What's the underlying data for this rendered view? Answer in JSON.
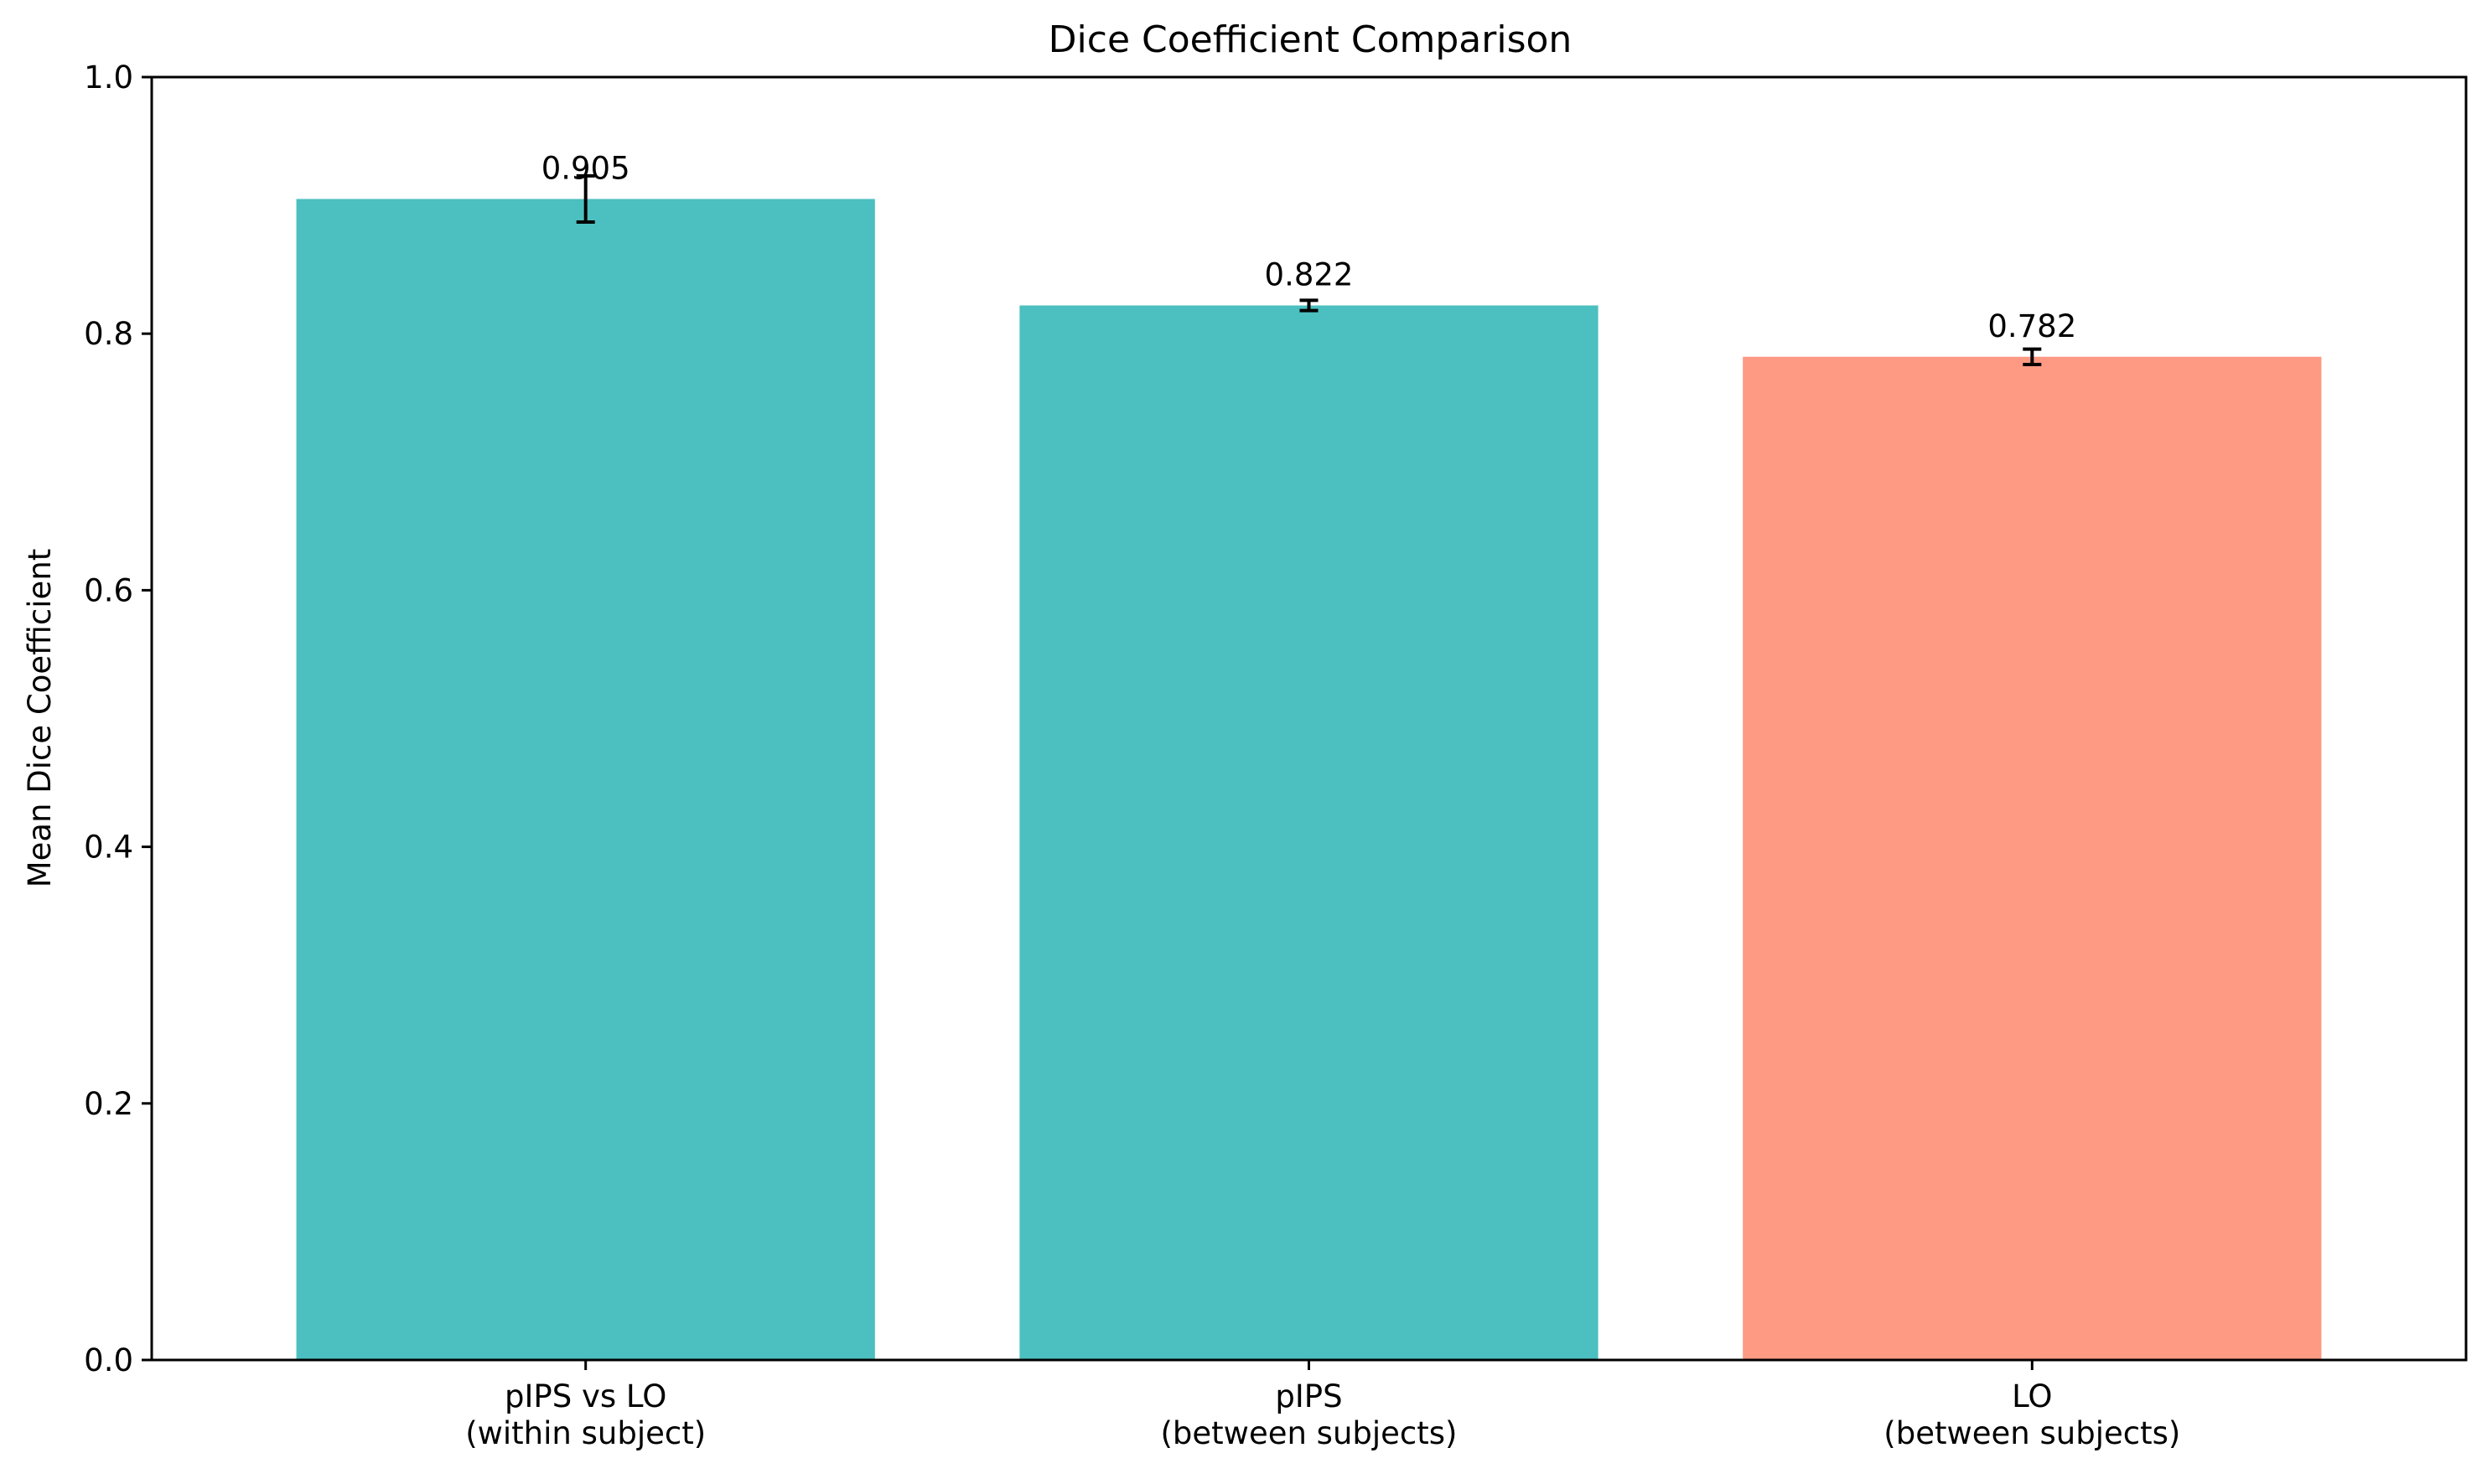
{
  "chart_data": {
    "type": "bar",
    "title": "Dice Coefficient Comparison",
    "xlabel": "",
    "ylabel": "Mean Dice Coefficient",
    "ylim": [
      0,
      1.0
    ],
    "yticks": [
      "0.0",
      "0.2",
      "0.4",
      "0.6",
      "0.8",
      "1.0"
    ],
    "ytick_values": [
      0.0,
      0.2,
      0.4,
      0.6,
      0.8,
      1.0
    ],
    "categories": [
      [
        "pIPS vs LO",
        "(within subject)"
      ],
      [
        "pIPS",
        "(between subjects)"
      ],
      [
        "LO",
        "(between subjects)"
      ]
    ],
    "values": [
      0.905,
      0.822,
      0.782
    ],
    "value_labels": [
      "0.905",
      "0.822",
      "0.782"
    ],
    "errors": [
      0.018,
      0.004,
      0.006
    ],
    "colors": [
      "#4cbfc0",
      "#4cbfc0",
      "#fe9a83"
    ],
    "grid": false,
    "legend": "none"
  }
}
